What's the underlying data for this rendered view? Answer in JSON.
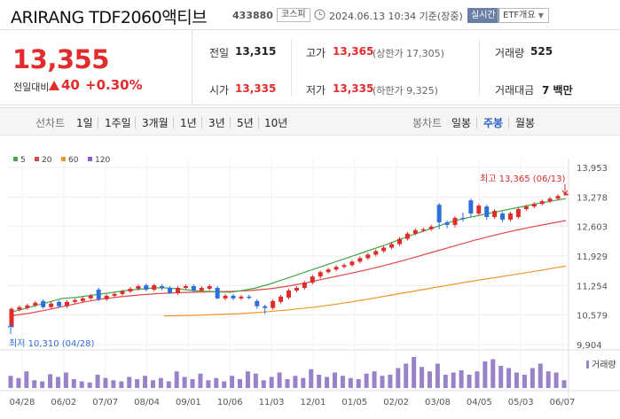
{
  "header": {
    "name": "ARIRANG TDF2060액티브",
    "code": "433880",
    "market": "코스피",
    "timestamp": "2024.06.13 10:34 기준(장중)",
    "live": "실시간",
    "etf_info": "ETF개요"
  },
  "quote": {
    "price": "13,355",
    "change_label": "전일대비",
    "change": "40",
    "change_rate": "+0.30%",
    "prev_label": "전일",
    "prev": "13,315",
    "open_label": "시가",
    "open": "13,335",
    "high_label": "고가",
    "high": "13,365",
    "upper_limit": "(상한가 17,305)",
    "low_label": "저가",
    "low": "13,335",
    "lower_limit": "(하한가 9,325)",
    "volume_label": "거래량",
    "volume": "525",
    "amount_label": "거래대금",
    "amount": "7 백만"
  },
  "period_bar": {
    "line_label": "선차트",
    "periods": [
      "1일",
      "1주일",
      "3개월",
      "1년",
      "3년",
      "5년",
      "10년"
    ],
    "candle_label": "봉차트",
    "candles": [
      "일봉",
      "주봉",
      "월봉"
    ],
    "active_candle": "주봉"
  },
  "colors": {
    "up": "#e12c2c",
    "down": "#2f6fd9",
    "ma5": "#45a845",
    "ma20": "#e04848",
    "ma60": "#f0962a",
    "ma120": "#8a5cc8",
    "volume": "#9a82c8"
  },
  "chart_data": {
    "type": "candlestick",
    "legend": [
      {
        "name": "5",
        "color": "#45a845"
      },
      {
        "name": "20",
        "color": "#e04848"
      },
      {
        "name": "60",
        "color": "#f0962a"
      },
      {
        "name": "120",
        "color": "#8a5cc8"
      }
    ],
    "y_ticks": [
      "13,953",
      "13,278",
      "12,603",
      "11,929",
      "11,254",
      "10,579",
      "9,904"
    ],
    "ylim": [
      9904,
      13953
    ],
    "x_ticks": [
      "04/28",
      "06/02",
      "07/07",
      "08/04",
      "09/01",
      "10/06",
      "11/03",
      "12/01",
      "01/05",
      "02/02",
      "03/08",
      "04/05",
      "05/03",
      "06/07"
    ],
    "high_annotation": "최고 13,365 (06/13)",
    "low_annotation": "최저 10,310 (04/28)",
    "volume_label": "거래량",
    "candles": [
      {
        "o": 10310,
        "c": 10720,
        "h": 10760,
        "l": 10310
      },
      {
        "o": 10700,
        "c": 10760,
        "h": 10800,
        "l": 10660
      },
      {
        "o": 10740,
        "c": 10800,
        "h": 10840,
        "l": 10700
      },
      {
        "o": 10800,
        "c": 10860,
        "h": 10900,
        "l": 10760
      },
      {
        "o": 10900,
        "c": 10760,
        "h": 10940,
        "l": 10720
      },
      {
        "o": 10760,
        "c": 10840,
        "h": 10880,
        "l": 10720
      },
      {
        "o": 10880,
        "c": 10780,
        "h": 10920,
        "l": 10740
      },
      {
        "o": 10780,
        "c": 10880,
        "h": 10920,
        "l": 10740
      },
      {
        "o": 10880,
        "c": 10920,
        "h": 10960,
        "l": 10840
      },
      {
        "o": 10900,
        "c": 10960,
        "h": 11000,
        "l": 10860
      },
      {
        "o": 10960,
        "c": 11020,
        "h": 11060,
        "l": 10920
      },
      {
        "o": 11160,
        "c": 10940,
        "h": 11200,
        "l": 10900
      },
      {
        "o": 10940,
        "c": 11020,
        "h": 11060,
        "l": 10900
      },
      {
        "o": 11020,
        "c": 11060,
        "h": 11100,
        "l": 10980
      },
      {
        "o": 11060,
        "c": 11120,
        "h": 11160,
        "l": 11020
      },
      {
        "o": 11120,
        "c": 11180,
        "h": 11220,
        "l": 11080
      },
      {
        "o": 11180,
        "c": 11240,
        "h": 11280,
        "l": 11140
      },
      {
        "o": 11260,
        "c": 11160,
        "h": 11300,
        "l": 11120
      },
      {
        "o": 11160,
        "c": 11260,
        "h": 11300,
        "l": 11120
      },
      {
        "o": 11240,
        "c": 11200,
        "h": 11280,
        "l": 11140
      },
      {
        "o": 11200,
        "c": 11080,
        "h": 11240,
        "l": 11060
      },
      {
        "o": 11080,
        "c": 11200,
        "h": 11240,
        "l": 11040
      },
      {
        "o": 11200,
        "c": 11240,
        "h": 11280,
        "l": 11160
      },
      {
        "o": 11240,
        "c": 11140,
        "h": 11280,
        "l": 11100
      },
      {
        "o": 11140,
        "c": 11200,
        "h": 11240,
        "l": 11100
      },
      {
        "o": 11180,
        "c": 11240,
        "h": 11280,
        "l": 11140
      },
      {
        "o": 11200,
        "c": 10960,
        "h": 11240,
        "l": 10940
      },
      {
        "o": 10960,
        "c": 11020,
        "h": 11060,
        "l": 10920
      },
      {
        "o": 11020,
        "c": 10960,
        "h": 11060,
        "l": 10920
      },
      {
        "o": 10960,
        "c": 11000,
        "h": 11040,
        "l": 10920
      },
      {
        "o": 11000,
        "c": 10980,
        "h": 11040,
        "l": 10940
      },
      {
        "o": 10900,
        "c": 10780,
        "h": 10940,
        "l": 10720
      },
      {
        "o": 10780,
        "c": 10740,
        "h": 10820,
        "l": 10600
      },
      {
        "o": 10740,
        "c": 10900,
        "h": 10940,
        "l": 10700
      },
      {
        "o": 10880,
        "c": 11000,
        "h": 11040,
        "l": 10840
      },
      {
        "o": 10980,
        "c": 11140,
        "h": 11180,
        "l": 10940
      },
      {
        "o": 11140,
        "c": 11200,
        "h": 11240,
        "l": 11100
      },
      {
        "o": 11200,
        "c": 11320,
        "h": 11360,
        "l": 11160
      },
      {
        "o": 11320,
        "c": 11460,
        "h": 11500,
        "l": 11280
      },
      {
        "o": 11460,
        "c": 11560,
        "h": 11600,
        "l": 11420
      },
      {
        "o": 11560,
        "c": 11620,
        "h": 11660,
        "l": 11520
      },
      {
        "o": 11620,
        "c": 11680,
        "h": 11720,
        "l": 11580
      },
      {
        "o": 11680,
        "c": 11720,
        "h": 11760,
        "l": 11640
      },
      {
        "o": 11720,
        "c": 11800,
        "h": 11840,
        "l": 11680
      },
      {
        "o": 11800,
        "c": 11880,
        "h": 11920,
        "l": 11760
      },
      {
        "o": 11880,
        "c": 11960,
        "h": 12000,
        "l": 11840
      },
      {
        "o": 11960,
        "c": 12040,
        "h": 12080,
        "l": 11920
      },
      {
        "o": 12040,
        "c": 12120,
        "h": 12160,
        "l": 12000
      },
      {
        "o": 12120,
        "c": 12200,
        "h": 12240,
        "l": 12080
      },
      {
        "o": 12200,
        "c": 12320,
        "h": 12360,
        "l": 12160
      },
      {
        "o": 12320,
        "c": 12440,
        "h": 12480,
        "l": 12280
      },
      {
        "o": 12440,
        "c": 12520,
        "h": 12560,
        "l": 12400
      },
      {
        "o": 12520,
        "c": 12540,
        "h": 12580,
        "l": 12480
      },
      {
        "o": 12540,
        "c": 12600,
        "h": 12640,
        "l": 12500
      },
      {
        "o": 13100,
        "c": 12700,
        "h": 13140,
        "l": 12540
      },
      {
        "o": 12700,
        "c": 12640,
        "h": 12740,
        "l": 12560
      },
      {
        "o": 12640,
        "c": 12800,
        "h": 12840,
        "l": 12580
      },
      {
        "o": 12800,
        "c": 12780,
        "h": 12920,
        "l": 12720
      },
      {
        "o": 13200,
        "c": 12900,
        "h": 13240,
        "l": 12820
      },
      {
        "o": 12900,
        "c": 13080,
        "h": 13120,
        "l": 12860
      },
      {
        "o": 13060,
        "c": 12820,
        "h": 13100,
        "l": 12760
      },
      {
        "o": 12820,
        "c": 12960,
        "h": 13000,
        "l": 12780
      },
      {
        "o": 12900,
        "c": 12760,
        "h": 12940,
        "l": 12700
      },
      {
        "o": 12760,
        "c": 12900,
        "h": 12940,
        "l": 12720
      },
      {
        "o": 12820,
        "c": 13000,
        "h": 13040,
        "l": 12780
      },
      {
        "o": 13000,
        "c": 13060,
        "h": 13100,
        "l": 12960
      },
      {
        "o": 13060,
        "c": 13120,
        "h": 13160,
        "l": 13020
      },
      {
        "o": 13120,
        "c": 13180,
        "h": 13220,
        "l": 13080
      },
      {
        "o": 13180,
        "c": 13240,
        "h": 13280,
        "l": 13140
      },
      {
        "o": 13240,
        "c": 13300,
        "h": 13340,
        "l": 13200
      },
      {
        "o": 13315,
        "c": 13355,
        "h": 13365,
        "l": 13315
      }
    ],
    "ma5": [
      10640,
      10720,
      10800,
      10880,
      10960,
      10980,
      11020,
      11060,
      11100,
      11140,
      11170,
      11200,
      11200,
      11180,
      11140,
      11120,
      11110,
      11100,
      11140,
      11200,
      11280,
      11380,
      11480,
      11580,
      11680,
      11780,
      11880,
      11980,
      12080,
      12180,
      12290,
      12400,
      12500,
      12600,
      12700,
      12780,
      12840,
      12900,
      12960,
      13020,
      13080,
      13140,
      13190,
      13240
    ],
    "ma20": [
      10560,
      10620,
      10700,
      10790,
      10880,
      10950,
      11000,
      11040,
      11070,
      11090,
      11100,
      11110,
      11120,
      11140,
      11180,
      11240,
      11320,
      11410,
      11500,
      11590,
      11690,
      11800,
      11920,
      12040,
      12160,
      12280,
      12390,
      12490,
      12580,
      12660,
      12740
    ],
    "ma60": [
      10560,
      10570,
      10590,
      10610,
      10650,
      10700,
      10760,
      10840,
      10930,
      11030,
      11130,
      11230,
      11330,
      11420,
      11510,
      11600,
      11700
    ],
    "volume": [
      22,
      18,
      30,
      14,
      12,
      25,
      20,
      28,
      16,
      12,
      10,
      24,
      18,
      14,
      12,
      20,
      16,
      22,
      14,
      18,
      12,
      30,
      20,
      16,
      26,
      14,
      18,
      12,
      22,
      16,
      30,
      26,
      14,
      20,
      28,
      16,
      22,
      18,
      34,
      24,
      20,
      28,
      22,
      18,
      16,
      26,
      30,
      22,
      24,
      36,
      44,
      56,
      38,
      30,
      44,
      24,
      28,
      32,
      24,
      30,
      48,
      52,
      40,
      36,
      28,
      24,
      36,
      44,
      30,
      28,
      14
    ]
  }
}
